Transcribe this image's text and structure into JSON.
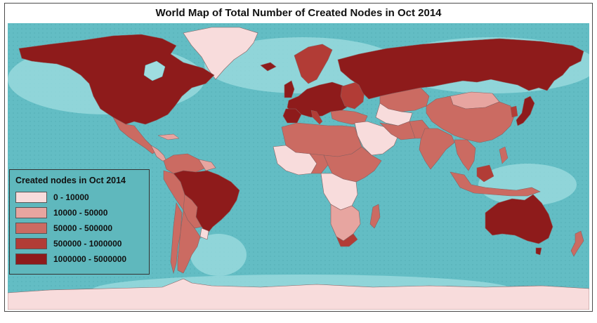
{
  "title": "World Map of Total Number of Created Nodes in Oct 2014",
  "colors": {
    "ocean": "#63bdc4",
    "ocean_shelf": "#9fdde0",
    "border": "#8a5f5f",
    "class_0_10000": "#f8dcdc",
    "class_10000_50000": "#e7a5a0",
    "class_50000_500000": "#cb6b62",
    "class_500000_1000000": "#b23c36",
    "class_1000000_5000000": "#8e1b1b"
  },
  "legend": {
    "title": "Created nodes in Oct 2014",
    "items": [
      {
        "label": "0 - 10000",
        "color": "#f8dcdc"
      },
      {
        "label": "10000 - 50000",
        "color": "#e7a5a0"
      },
      {
        "label": "50000 - 500000",
        "color": "#cb6b62"
      },
      {
        "label": "500000 - 1000000",
        "color": "#b23c36"
      },
      {
        "label": "1000000 - 5000000",
        "color": "#8e1b1b"
      }
    ]
  },
  "regions": [
    {
      "name": "North America (USA & Canada)",
      "class": "1000000 - 5000000"
    },
    {
      "name": "Greenland",
      "class": "0 - 10000"
    },
    {
      "name": "Mexico",
      "class": "50000 - 500000"
    },
    {
      "name": "Brazil",
      "class": "1000000 - 5000000"
    },
    {
      "name": "Argentina",
      "class": "50000 - 500000"
    },
    {
      "name": "Europe",
      "class": "1000000 - 5000000"
    },
    {
      "name": "Russia",
      "class": "1000000 - 5000000"
    },
    {
      "name": "China",
      "class": "50000 - 500000"
    },
    {
      "name": "India",
      "class": "50000 - 500000"
    },
    {
      "name": "Japan",
      "class": "1000000 - 5000000"
    },
    {
      "name": "Australia",
      "class": "1000000 - 5000000"
    },
    {
      "name": "Antarctica",
      "class": "0 - 10000"
    }
  ]
}
